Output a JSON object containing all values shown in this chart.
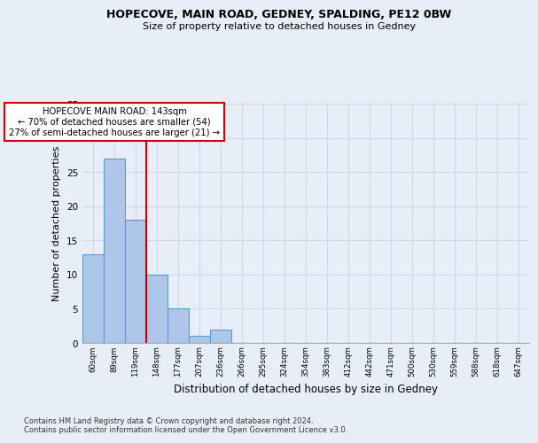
{
  "title1": "HOPECOVE, MAIN ROAD, GEDNEY, SPALDING, PE12 0BW",
  "title2": "Size of property relative to detached houses in Gedney",
  "xlabel": "Distribution of detached houses by size in Gedney",
  "ylabel": "Number of detached properties",
  "categories": [
    "60sqm",
    "89sqm",
    "119sqm",
    "148sqm",
    "177sqm",
    "207sqm",
    "236sqm",
    "266sqm",
    "295sqm",
    "324sqm",
    "354sqm",
    "383sqm",
    "412sqm",
    "442sqm",
    "471sqm",
    "500sqm",
    "530sqm",
    "559sqm",
    "588sqm",
    "618sqm",
    "647sqm"
  ],
  "values": [
    13,
    27,
    18,
    10,
    5,
    1,
    2,
    0,
    0,
    0,
    0,
    0,
    0,
    0,
    0,
    0,
    0,
    0,
    0,
    0,
    0
  ],
  "bar_color": "#aec6e8",
  "bar_edge_color": "#5b9bd5",
  "ref_line_color": "#cc0000",
  "annotation_text": "HOPECOVE MAIN ROAD: 143sqm\n← 70% of detached houses are smaller (54)\n27% of semi-detached houses are larger (21) →",
  "annotation_box_color": "#ffffff",
  "annotation_box_edge": "#cc0000",
  "ylim": [
    0,
    35
  ],
  "yticks": [
    0,
    5,
    10,
    15,
    20,
    25,
    30,
    35
  ],
  "footnote1": "Contains HM Land Registry data © Crown copyright and database right 2024.",
  "footnote2": "Contains public sector information licensed under the Open Government Licence v3.0.",
  "grid_color": "#d0d8e8",
  "background_color": "#e8eef8"
}
